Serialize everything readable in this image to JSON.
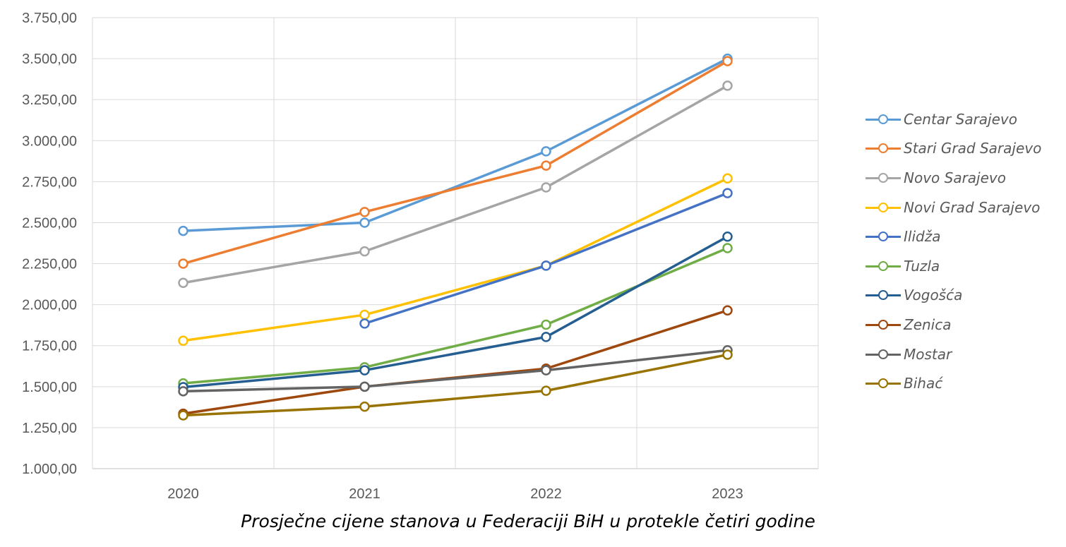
{
  "chart_data": {
    "type": "line",
    "title": "Prosječne cijene stanova u Federaciji BiH u protekle četiri godine",
    "categories": [
      "2020",
      "2021",
      "2022",
      "2023"
    ],
    "y_ticks": [
      "1.000,00",
      "1.250,00",
      "1.500,00",
      "1.750,00",
      "2.000,00",
      "2.250,00",
      "2.500,00",
      "2.750,00",
      "3.000,00",
      "3.250,00",
      "3.500,00",
      "3.750,00"
    ],
    "ylim": [
      1000,
      3750
    ],
    "grid": true,
    "legend_position": "right",
    "series": [
      {
        "name": "Centar Sarajevo",
        "color": "#5B9BD5",
        "values": [
          2450,
          2500,
          2935,
          3500
        ]
      },
      {
        "name": "Stari Grad Sarajevo",
        "color": "#ED7D31",
        "values": [
          2250,
          2565,
          2848,
          3485
        ]
      },
      {
        "name": "Novo Sarajevo",
        "color": "#A5A5A5",
        "values": [
          2133,
          2325,
          2715,
          3335
        ]
      },
      {
        "name": "Novi Grad Sarajevo",
        "color": "#FFC000",
        "values": [
          1780,
          1938,
          2238,
          2770
        ]
      },
      {
        "name": "Ilidža",
        "color": "#4472C4",
        "values": [
          null,
          1885,
          2238,
          2680
        ]
      },
      {
        "name": "Tuzla",
        "color": "#70AD47",
        "values": [
          1520,
          1618,
          1878,
          2345
        ]
      },
      {
        "name": "Vogošća",
        "color": "#255E91",
        "values": [
          1497,
          1600,
          1803,
          2415
        ]
      },
      {
        "name": "Zenica",
        "color": "#9E480E",
        "values": [
          1335,
          1500,
          1610,
          1965
        ]
      },
      {
        "name": "Mostar",
        "color": "#636363",
        "values": [
          1472,
          1500,
          1600,
          1722
        ]
      },
      {
        "name": "Bihać",
        "color": "#997300",
        "values": [
          1325,
          1378,
          1475,
          1695
        ]
      }
    ]
  }
}
